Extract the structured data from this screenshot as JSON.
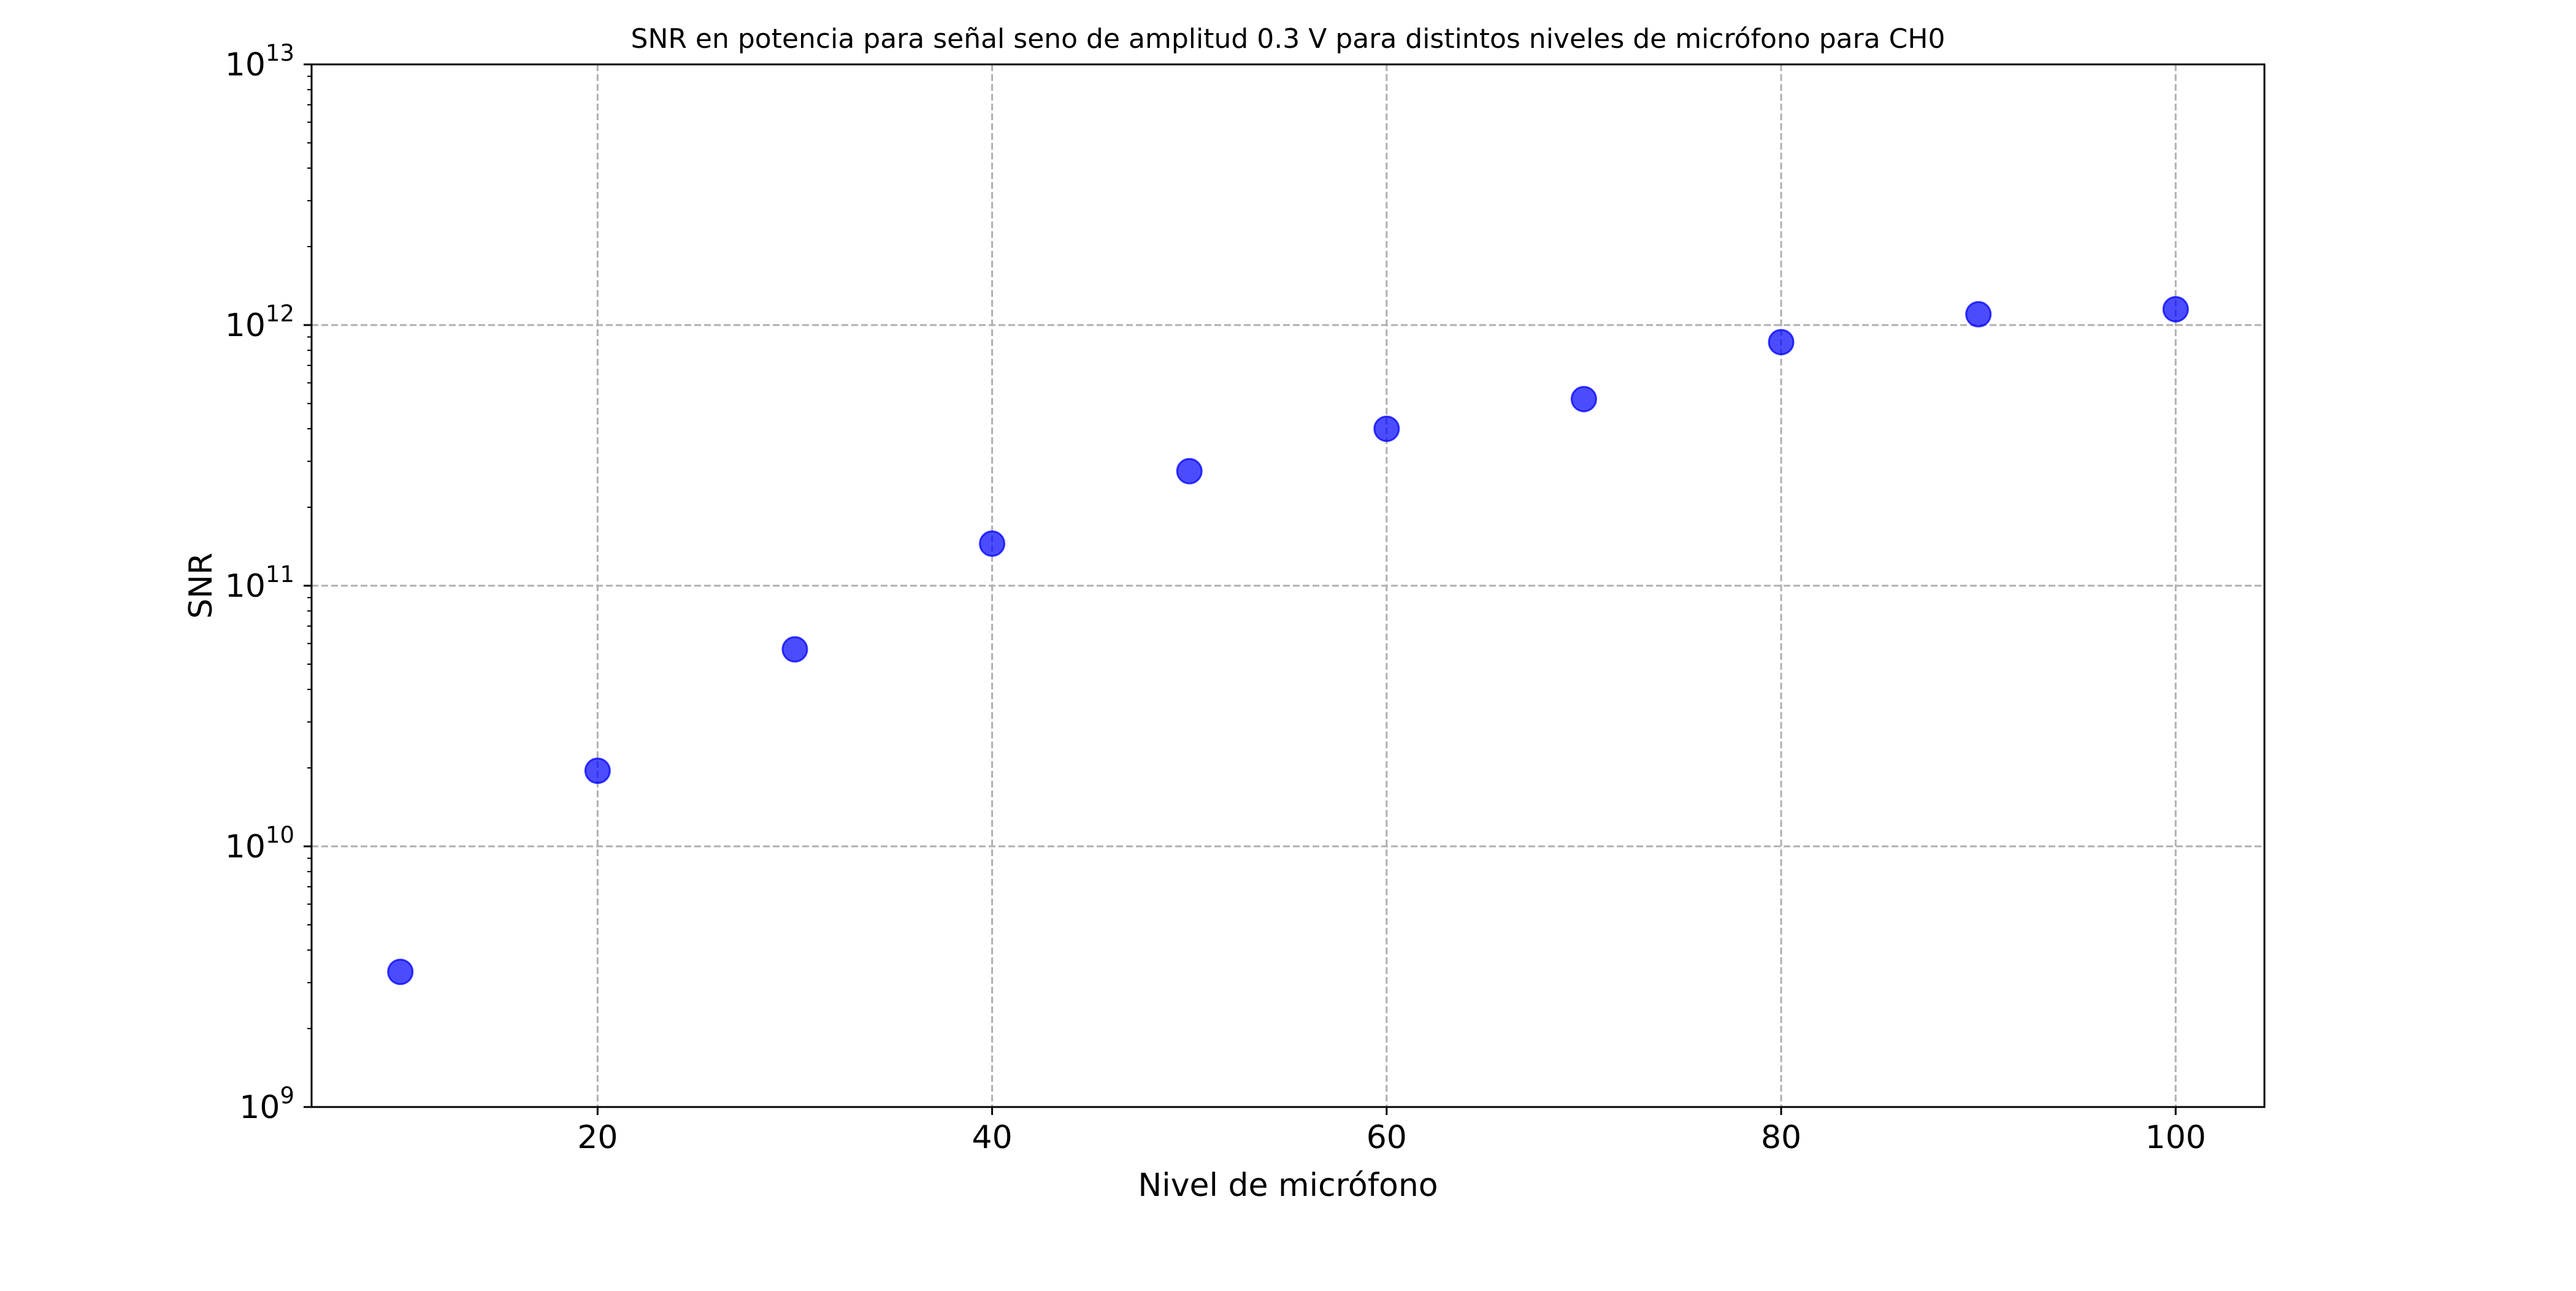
{
  "chart_data": {
    "type": "scatter",
    "title": "SNR en potencia para señal seno de amplitud 0.3 V para distintos niveles de micrófono para CH0",
    "xlabel": "Nivel de micrófono",
    "ylabel": "SNR",
    "xlim": [
      5.5,
      104.5
    ],
    "ylim": [
      1000000000.0,
      10000000000000.0
    ],
    "yscale": "log",
    "grid": true,
    "x_ticks": [
      20,
      40,
      60,
      80,
      100
    ],
    "y_ticks": [
      {
        "base": "10",
        "exp": "9",
        "value": 1000000000.0
      },
      {
        "base": "10",
        "exp": "10",
        "value": 10000000000.0
      },
      {
        "base": "10",
        "exp": "11",
        "value": 100000000000.0
      },
      {
        "base": "10",
        "exp": "12",
        "value": 1000000000000.0
      },
      {
        "base": "10",
        "exp": "13",
        "value": 10000000000000.0
      }
    ],
    "marker_color": "#0000ff",
    "marker_alpha": 0.7,
    "x": [
      10,
      20,
      30,
      40,
      50,
      60,
      70,
      80,
      90,
      100
    ],
    "y": [
      3300000000.0,
      19500000000.0,
      57000000000.0,
      145000000000.0,
      275000000000.0,
      400000000000.0,
      520000000000.0,
      860000000000.0,
      1100000000000.0,
      1150000000000.0
    ]
  }
}
